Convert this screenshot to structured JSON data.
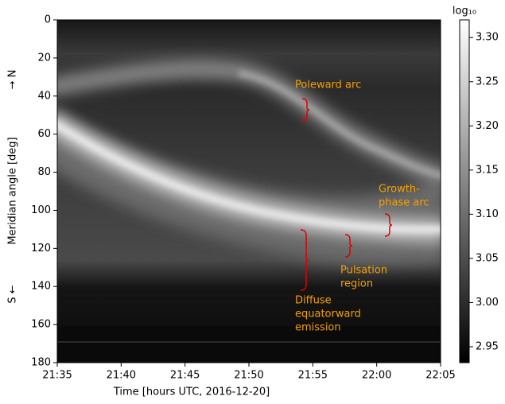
{
  "chart_data": {
    "type": "heatmap",
    "xlabel": "Time [hours UTC, 2016-12-20]",
    "ylabel": "Meridian angle [deg]",
    "ylabel_north": "→ N",
    "ylabel_south": "S ←",
    "xlim": [
      "21:35",
      "22:05"
    ],
    "xticks": [
      "21:35",
      "21:40",
      "21:45",
      "21:50",
      "21:55",
      "22:00",
      "22:05"
    ],
    "ylim": [
      0,
      180
    ],
    "y_inverted": true,
    "yticks": [
      0,
      20,
      40,
      60,
      80,
      100,
      120,
      140,
      160,
      180
    ],
    "colormap": "gray",
    "colorbar_label": "log₁₀",
    "clim": [
      2.932,
      3.32
    ],
    "colorbar_ticks": [
      {
        "value": 2.95,
        "label": "2.95"
      },
      {
        "value": 3.0,
        "label": "3.00"
      },
      {
        "value": 3.05,
        "label": "3.05"
      },
      {
        "value": 3.1,
        "label": "3.10"
      },
      {
        "value": 3.15,
        "label": "3.15"
      },
      {
        "value": 3.2,
        "label": "3.20"
      },
      {
        "value": 3.25,
        "label": "3.25"
      },
      {
        "value": 3.3,
        "label": "3.30"
      }
    ],
    "annotation_color": "#f5a000",
    "annotations": [
      {
        "lines": [
          "Poleward arc"
        ]
      },
      {
        "lines": [
          "Growth-",
          "phase arc"
        ]
      },
      {
        "lines": [
          "Pulsation",
          "region"
        ]
      },
      {
        "lines": [
          "Diffuse",
          "equatorward",
          "emission"
        ]
      }
    ]
  }
}
